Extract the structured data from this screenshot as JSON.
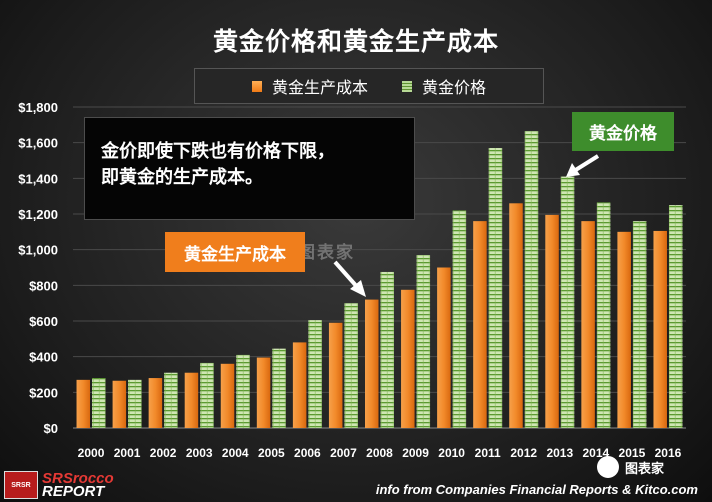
{
  "title": "黄金价格和黄金生产成本",
  "legend": [
    {
      "label": "黄金生产成本",
      "color": "#f07b16"
    },
    {
      "label": "黄金价格",
      "color": "#6fa33d"
    }
  ],
  "annotation_box": {
    "line1": "金价即使下跌也有价格下限，",
    "line2": "即黄金的生产成本。"
  },
  "callouts": {
    "cost_label": "黄金生产成本",
    "price_label": "黄金价格"
  },
  "footer": {
    "source": "info from Companies Financial Reports & Kitco.com",
    "logo_top": "SRSrocco",
    "logo_bottom": "REPORT",
    "logo_badge": "SRSR"
  },
  "watermark": {
    "center": "图表家",
    "corner": "图表家"
  },
  "chart_data": {
    "type": "bar",
    "categories": [
      "2000",
      "2001",
      "2002",
      "2003",
      "2004",
      "2005",
      "2006",
      "2007",
      "2008",
      "2009",
      "2010",
      "2011",
      "2012",
      "2013",
      "2014",
      "2015",
      "2016"
    ],
    "series": [
      {
        "name": "黄金生产成本",
        "values": [
          270,
          265,
          280,
          310,
          360,
          395,
          480,
          590,
          720,
          775,
          900,
          1160,
          1260,
          1195,
          1160,
          1100,
          1105
        ]
      },
      {
        "name": "黄金价格",
        "values": [
          280,
          270,
          310,
          365,
          410,
          445,
          605,
          700,
          875,
          970,
          1220,
          1570,
          1665,
          1410,
          1265,
          1160,
          1250
        ]
      }
    ],
    "ylim": [
      0,
      1800
    ],
    "yticks": [
      "$0",
      "$200",
      "$400",
      "$600",
      "$800",
      "$1,000",
      "$1,200",
      "$1,400",
      "$1,600",
      "$1,800"
    ],
    "xlabel": "",
    "ylabel": "",
    "grid": true
  }
}
